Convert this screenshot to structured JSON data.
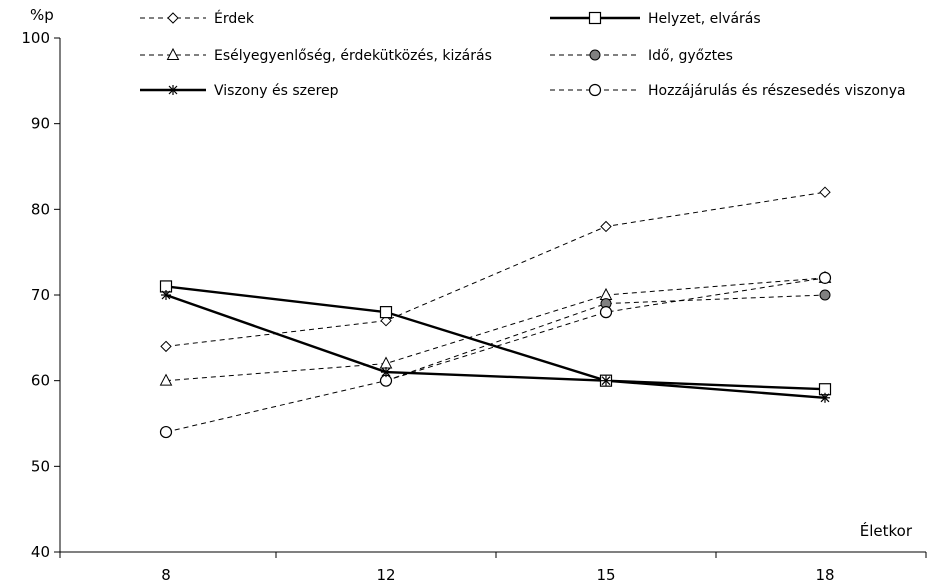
{
  "chart_data": {
    "type": "line",
    "title": "",
    "ylabel": "%p",
    "xlabel": "Életkor",
    "x": [
      8,
      12,
      15,
      18
    ],
    "x_tick_labels": [
      "8",
      "12",
      "15",
      "18"
    ],
    "ylim": [
      40,
      100
    ],
    "yticks": [
      40,
      50,
      60,
      70,
      80,
      90,
      100
    ],
    "y_tick_labels": [
      "40",
      "50",
      "60",
      "70",
      "80",
      "90",
      "100"
    ],
    "grid": false,
    "legend_placement": "top",
    "series": [
      {
        "name": "Érdek",
        "values": [
          64,
          67,
          78,
          82
        ],
        "line": "dashed",
        "marker": "diamond-open"
      },
      {
        "name": "Helyzet, elvárás",
        "values": [
          71,
          68,
          60,
          59
        ],
        "line": "solid-bold",
        "marker": "square-open"
      },
      {
        "name": "Esélyegyenlőség, érdekütközés, kizárás",
        "values": [
          60,
          62,
          70,
          72
        ],
        "line": "dashed",
        "marker": "triangle-open"
      },
      {
        "name": "Idő, győztes",
        "values": [
          null,
          60,
          69,
          70
        ],
        "line": "dashed",
        "marker": "circle-filled"
      },
      {
        "name": "Viszony és szerep",
        "values": [
          70,
          61,
          60,
          58
        ],
        "line": "solid-bold",
        "marker": "star"
      },
      {
        "name": "Hozzájárulás és részesedés viszonya",
        "values": [
          54,
          60,
          68,
          72
        ],
        "line": "dashed",
        "marker": "circle-open"
      }
    ],
    "colors": {
      "line": "#000000",
      "marker_fill_filled": "#808080",
      "marker_fill_open": "#ffffff"
    }
  }
}
